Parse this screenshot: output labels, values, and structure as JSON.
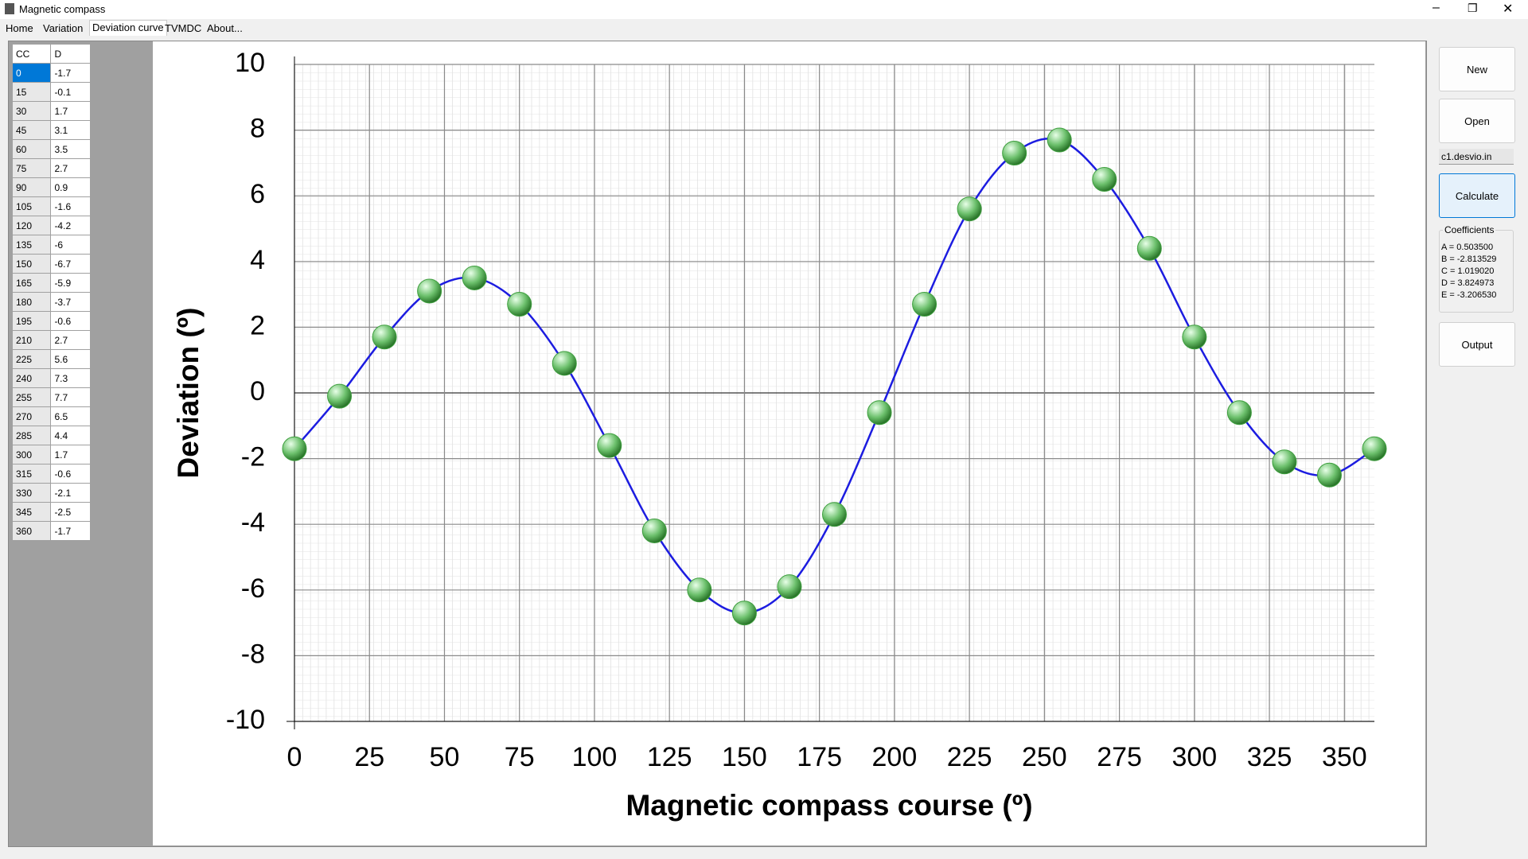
{
  "window": {
    "title": "Magnetic compass",
    "tabs": [
      "Home",
      "Variation",
      "Deviation curve",
      "TVMDC",
      "About..."
    ]
  },
  "table": {
    "headers": [
      "CC",
      "D"
    ]
  },
  "chart_data": {
    "type": "line",
    "x_label": "Magnetic compass course (º)",
    "y_label": "Deviation (º)",
    "x": [
      0,
      15,
      30,
      45,
      60,
      75,
      90,
      105,
      120,
      135,
      150,
      165,
      180,
      195,
      210,
      225,
      240,
      255,
      270,
      285,
      300,
      315,
      330,
      345,
      360
    ],
    "series": [
      {
        "color": "#1c1ce0",
        "marker_color": "#3f9f3f",
        "values": [
          -1.7,
          -0.1,
          1.7,
          3.1,
          3.5,
          2.7,
          0.9,
          -1.6,
          -4.2,
          -6,
          -6.7,
          -5.9,
          -3.7,
          -0.6,
          2.7,
          5.6,
          7.3,
          7.7,
          6.5,
          4.4,
          1.7,
          -0.6,
          -2.1,
          -2.5,
          -1.7
        ]
      }
    ],
    "xlim": [
      0,
      360
    ],
    "xticks": [
      0,
      25,
      50,
      75,
      100,
      125,
      150,
      175,
      200,
      225,
      250,
      275,
      300,
      325,
      350
    ],
    "ylim": [
      -10,
      10
    ],
    "yticks": [
      -10,
      -8,
      -6,
      -4,
      -2,
      0,
      2,
      4,
      6,
      8,
      10
    ],
    "grid": true
  },
  "sidebar": {
    "new": "New",
    "open": "Open",
    "file": "c1.desvio.in",
    "calculate": "Calculate",
    "coefficients": {
      "title": "Coefficients",
      "lines": [
        "A = 0.503500",
        "B = -2.813529",
        "C = 1.019020",
        "D = 3.824973",
        "E = -3.206530"
      ]
    },
    "output": "Output"
  }
}
